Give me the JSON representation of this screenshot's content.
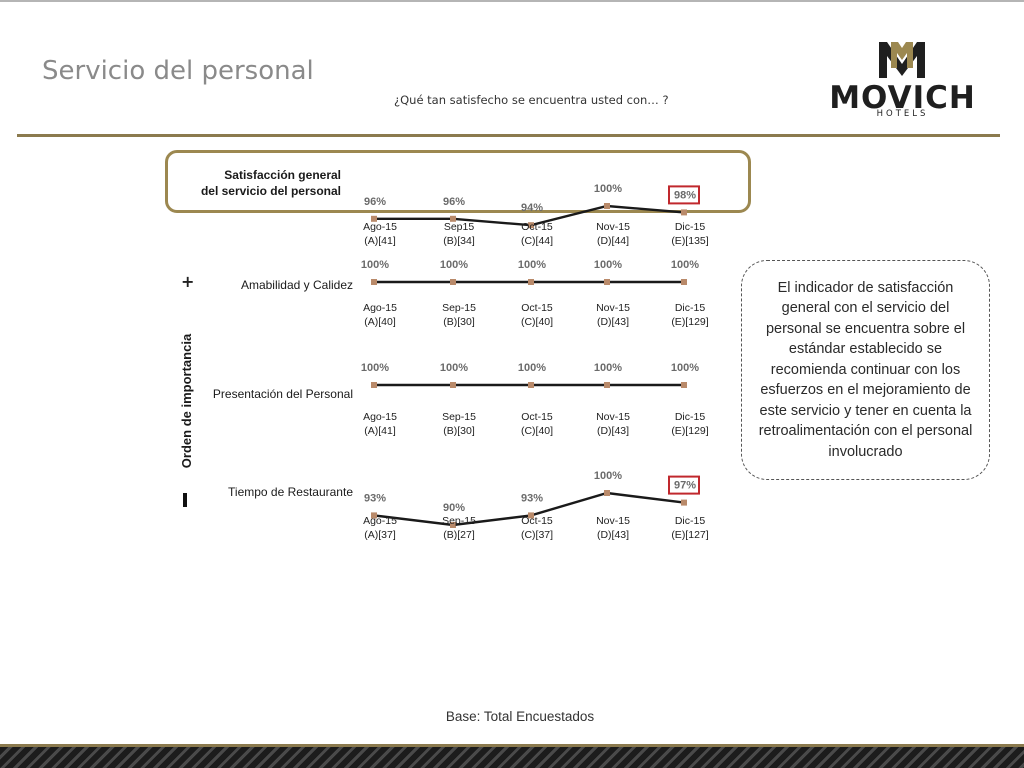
{
  "page": {
    "title": "Servicio del personal",
    "subtitle": "¿Qué tan satisfecho se encuentra usted con… ?",
    "base_note": "Base: Total Encuestados"
  },
  "logo": {
    "wordmark": "MOVICH",
    "sub": "HOTELS",
    "colors": {
      "gold": "#9c8850",
      "dark": "#1f1f1f"
    }
  },
  "importance_axis": {
    "label": "Orden de importancia",
    "top": "+",
    "bottom": "-"
  },
  "callout": {
    "text": "El indicador de satisfacción general con el servicio del personal se encuentra sobre el estándar establecido se recomienda continuar con los esfuerzos en el mejoramiento de este servicio y tener en cuenta la retroalimentación con el personal involucrado"
  },
  "colors": {
    "line": "#1a1a1a",
    "marker": "#b98a6a",
    "highlight": "#c0282d",
    "accent": "#8b7a4e"
  },
  "chart_data": [
    {
      "type": "line",
      "name": "Satisfacción general del servicio del personal",
      "label_lines": [
        "Satisfacción general",
        "del servicio del personal"
      ],
      "categories": [
        [
          "Ago-15",
          "(A)[41]"
        ],
        [
          "Sep15",
          "(B)[34]"
        ],
        [
          "Oct-15",
          "(C)[44]"
        ],
        [
          "Nov-15",
          "(D)[44]"
        ],
        [
          "Dic-15",
          "(E)[135]"
        ]
      ],
      "values": [
        96,
        96,
        94,
        100,
        98
      ],
      "value_labels": [
        "96%",
        "96%",
        "94%",
        "100%",
        "98%"
      ],
      "highlighted_index": 4,
      "ylim": [
        90,
        100
      ]
    },
    {
      "type": "line",
      "name": "Amabilidad y Calidez",
      "label_lines": [
        "Amabilidad y Calidez"
      ],
      "categories": [
        [
          "Ago-15",
          "(A)[40]"
        ],
        [
          "Sep-15",
          "(B)[30]"
        ],
        [
          "Oct-15",
          "(C)[40]"
        ],
        [
          "Nov-15",
          "(D)[43]"
        ],
        [
          "Dic-15",
          "(E)[129]"
        ]
      ],
      "values": [
        100,
        100,
        100,
        100,
        100
      ],
      "value_labels": [
        "100%",
        "100%",
        "100%",
        "100%",
        "100%"
      ],
      "highlighted_index": null,
      "ylim": [
        90,
        100
      ]
    },
    {
      "type": "line",
      "name": "Presentación del Personal",
      "label_lines": [
        "Presentación del Personal"
      ],
      "categories": [
        [
          "Ago-15",
          "(A)[41]"
        ],
        [
          "Sep-15",
          "(B)[30]"
        ],
        [
          "Oct-15",
          "(C)[40]"
        ],
        [
          "Nov-15",
          "(D)[43]"
        ],
        [
          "Dic-15",
          "(E)[129]"
        ]
      ],
      "values": [
        100,
        100,
        100,
        100,
        100
      ],
      "value_labels": [
        "100%",
        "100%",
        "100%",
        "100%",
        "100%"
      ],
      "highlighted_index": null,
      "ylim": [
        90,
        100
      ]
    },
    {
      "type": "line",
      "name": "Tiempo de Restaurante",
      "label_lines": [
        "Tiempo de Restaurante"
      ],
      "categories": [
        [
          "Ago-15",
          "(A)[37]"
        ],
        [
          "Sep-15",
          "(B)[27]"
        ],
        [
          "Oct-15",
          "(C)[37]"
        ],
        [
          "Nov-15",
          "(D)[43]"
        ],
        [
          "Dic-15",
          "(E)[127]"
        ]
      ],
      "values": [
        93,
        90,
        93,
        100,
        97
      ],
      "value_labels": [
        "93%",
        "90%",
        "93%",
        "100%",
        "97%"
      ],
      "highlighted_index": 4,
      "ylim": [
        90,
        100
      ]
    }
  ]
}
